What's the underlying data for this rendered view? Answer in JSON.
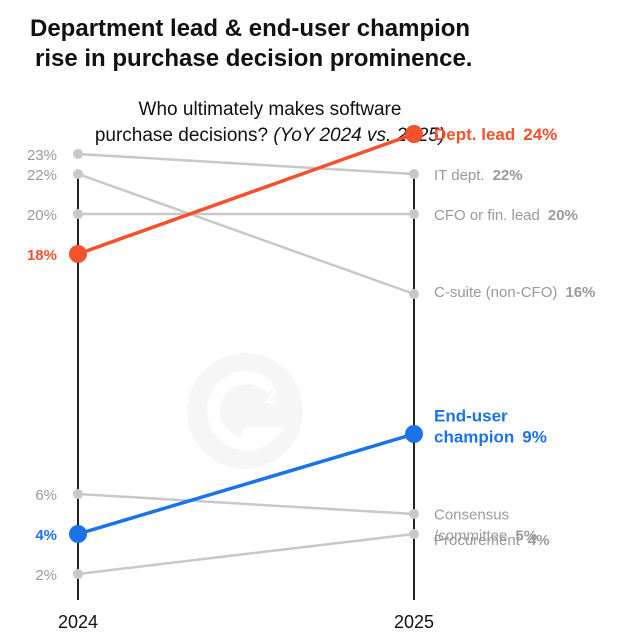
{
  "title": {
    "line1": "Department lead & end-user champion",
    "line2": "rise in purchase decision prominence."
  },
  "subtitle": {
    "line1": "Who ultimately makes software",
    "line2_plain": "purchase decisions? ",
    "line2_italic": "(YoY 2024 vs. 2025)"
  },
  "watermark": "G2 logo",
  "colors": {
    "highlight_red": "#f4512c",
    "highlight_blue": "#1a73e8",
    "muted": "#c8c8c8",
    "muted_text": "#9a9a9a",
    "axis": "#222222"
  },
  "chart_data": {
    "type": "line",
    "subtype": "slope",
    "x": [
      "2024",
      "2025"
    ],
    "series": [
      {
        "name": "Dept. lead",
        "values": [
          18,
          24
        ],
        "highlight": "red",
        "label_lines": [
          "Dept. lead"
        ],
        "left_label": "18%",
        "right_label": "24%"
      },
      {
        "name": "IT dept.",
        "values": [
          23,
          22
        ],
        "highlight": "none",
        "label_lines": [
          "IT dept."
        ],
        "left_label": "23%",
        "right_label": "22%"
      },
      {
        "name": "CFO or fin. lead",
        "values": [
          20,
          20
        ],
        "highlight": "none",
        "label_lines": [
          "CFO or fin. lead"
        ],
        "left_label": "20%",
        "right_label": "20%"
      },
      {
        "name": "C-suite (non-CFO)",
        "values": [
          22,
          16
        ],
        "highlight": "none",
        "label_lines": [
          "C-suite (non-CFO)"
        ],
        "left_label": "22%",
        "right_label": "16%"
      },
      {
        "name": "End-user champion",
        "values": [
          4,
          9
        ],
        "highlight": "blue",
        "label_lines": [
          "End-user",
          "champion"
        ],
        "left_label": "4%",
        "right_label": "9%"
      },
      {
        "name": "Consensus /committee",
        "values": [
          6,
          5
        ],
        "highlight": "none",
        "label_lines": [
          "Consensus",
          "/committee"
        ],
        "left_label": "6%",
        "right_label": "5%"
      },
      {
        "name": "Procurement",
        "values": [
          2,
          4
        ],
        "highlight": "none",
        "label_lines": [
          "Procurement"
        ],
        "left_label": "2%",
        "right_label": "4%"
      }
    ]
  }
}
